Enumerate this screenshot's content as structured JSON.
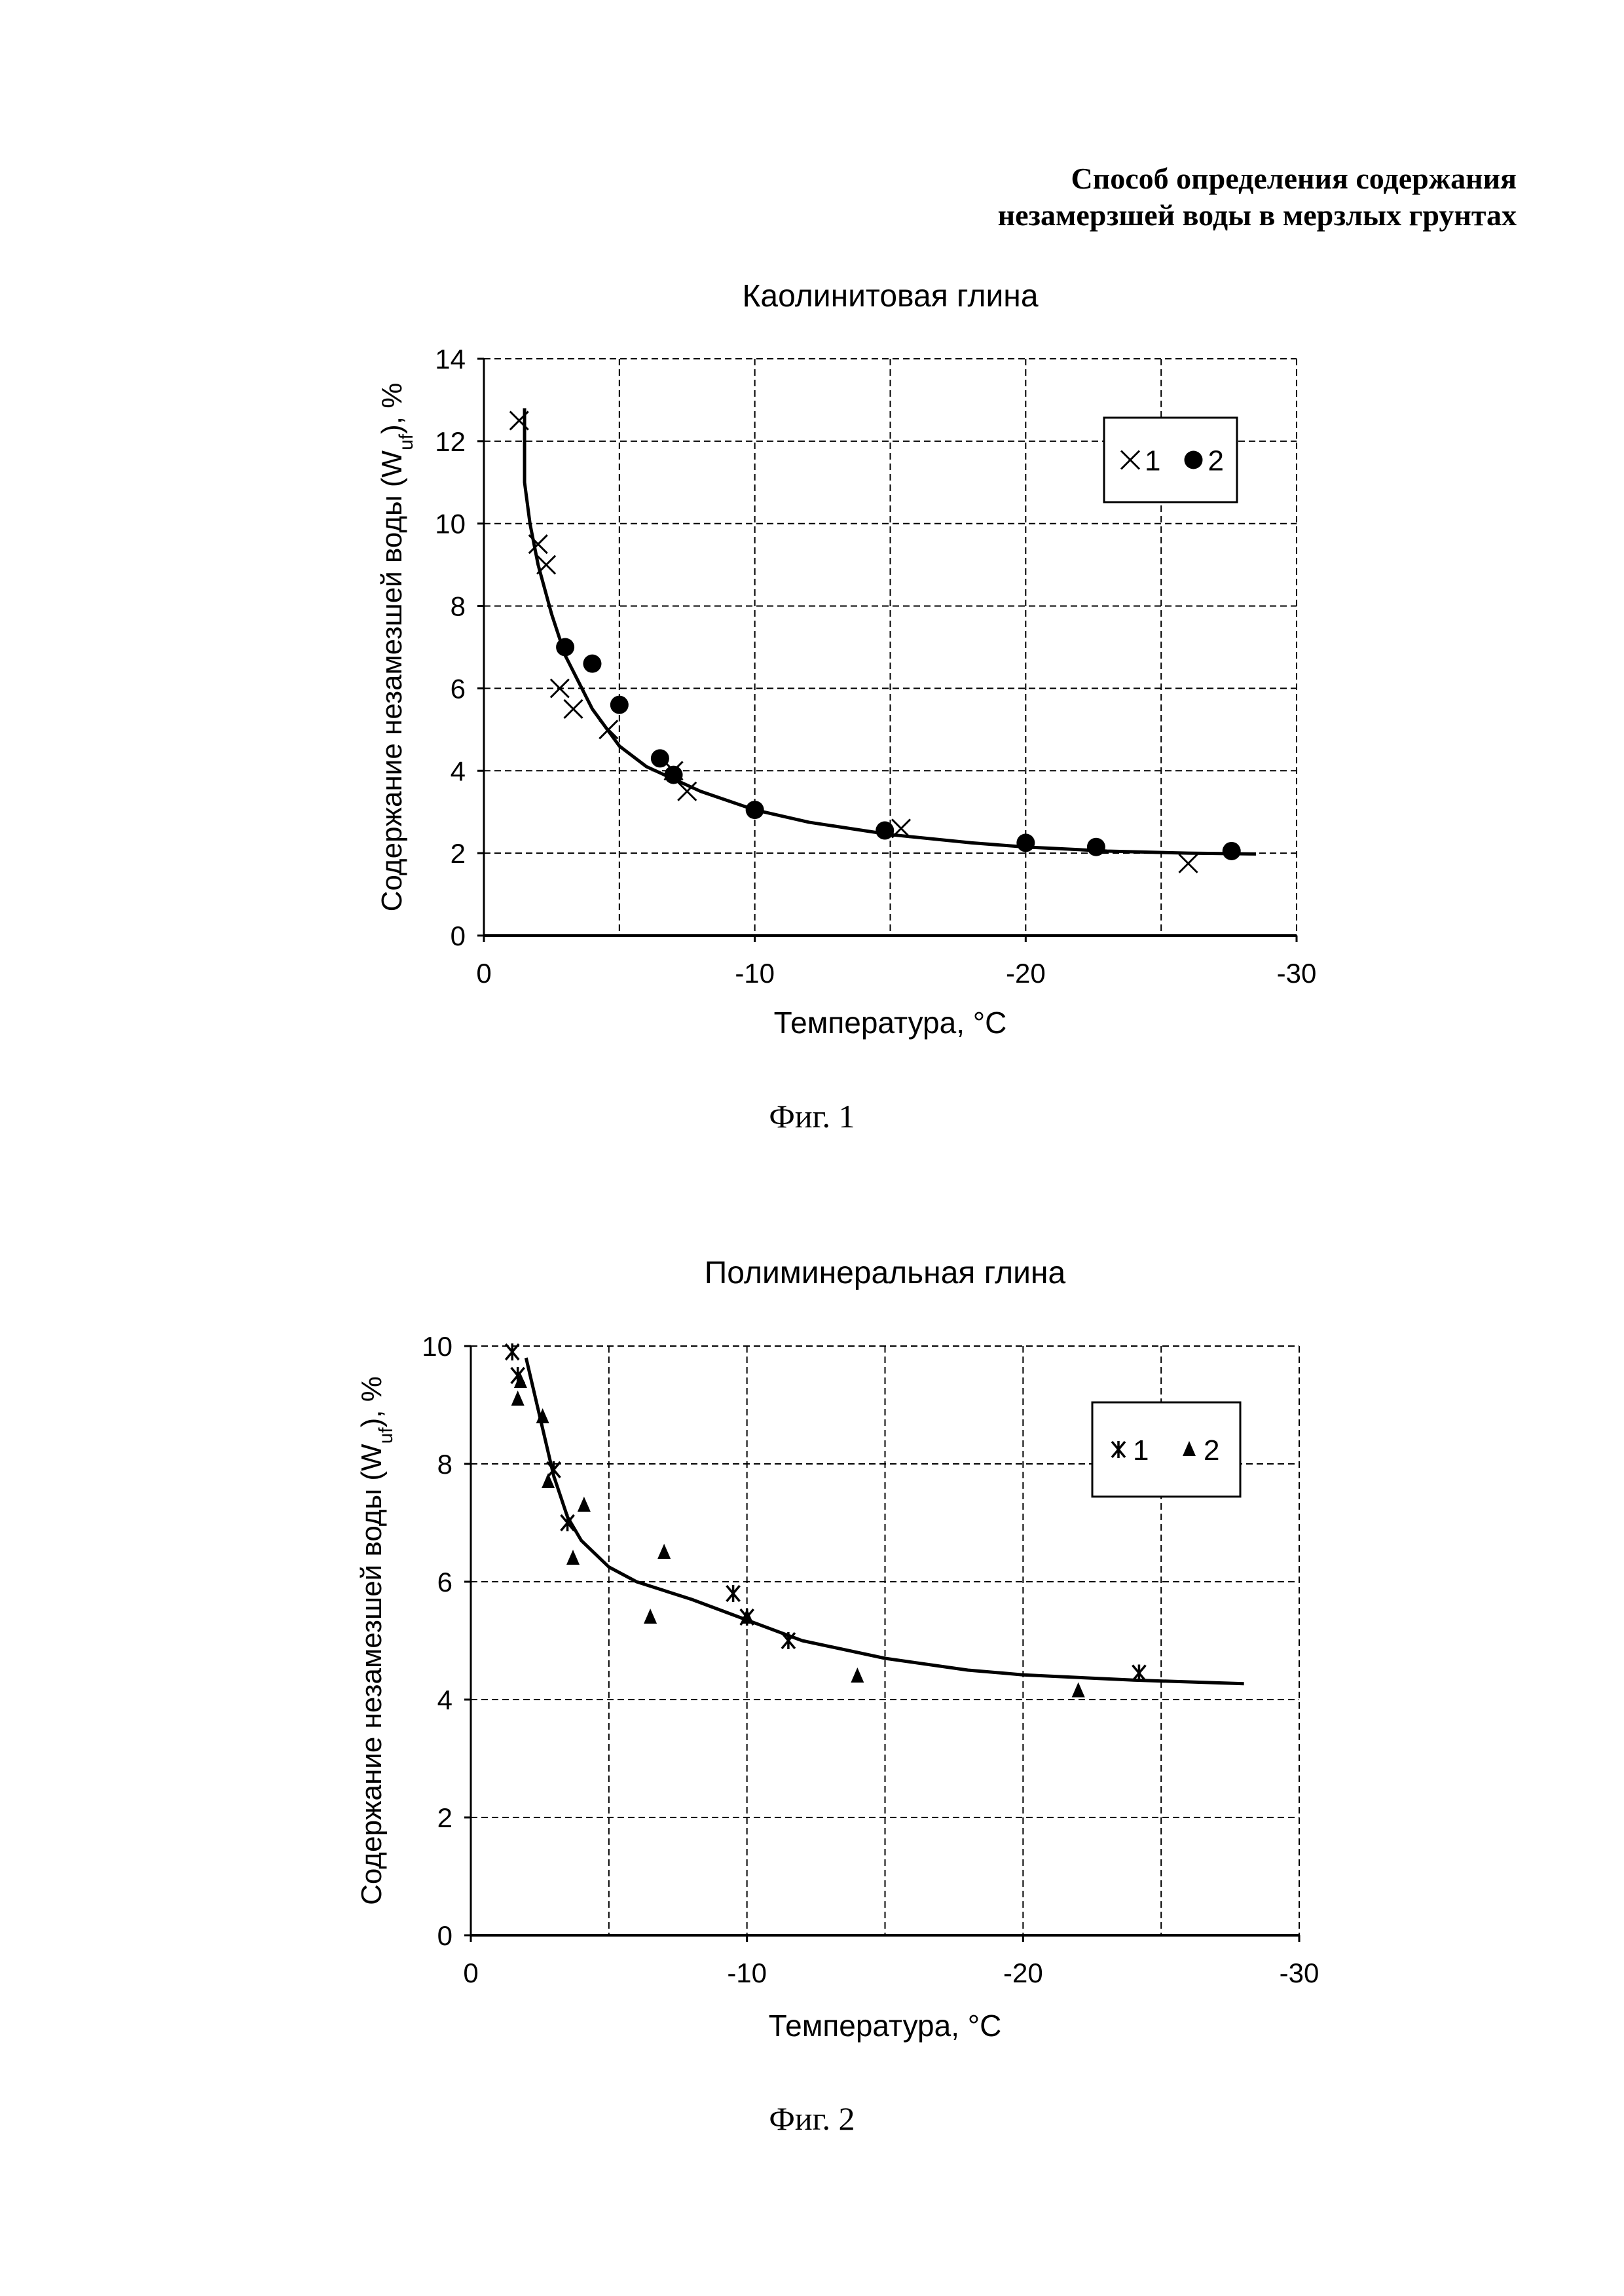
{
  "header": {
    "line1": "Способ определения содержания",
    "line2": "незамерзшей воды в мерзлых грунтах"
  },
  "figures": [
    {
      "caption": "Фиг. 1"
    },
    {
      "caption": "Фиг. 2"
    }
  ],
  "chart_data": [
    {
      "type": "scatter",
      "title": "Каолинитовая глина",
      "xlabel": "Температура, °C",
      "ylabel": "Содержание незамезшей воды (Wuf), %",
      "xlim": [
        0,
        -30
      ],
      "ylim": [
        0,
        14
      ],
      "xticks": [
        0,
        -10,
        -20,
        -30
      ],
      "yticks": [
        0,
        2,
        4,
        6,
        8,
        10,
        12,
        14
      ],
      "grid": true,
      "legend_position": "top-right",
      "series": [
        {
          "name": "1",
          "marker": "x",
          "points": [
            [
              -1.3,
              12.5
            ],
            [
              -2,
              9.5
            ],
            [
              -2.3,
              9
            ],
            [
              -2.8,
              6
            ],
            [
              -3.3,
              5.5
            ],
            [
              -4.6,
              5
            ],
            [
              -7,
              4
            ],
            [
              -7.5,
              3.5
            ],
            [
              -15.4,
              2.6
            ],
            [
              -26,
              1.75
            ]
          ]
        },
        {
          "name": "2",
          "marker": "circle",
          "points": [
            [
              -3,
              7
            ],
            [
              -4,
              6.6
            ],
            [
              -5,
              5.6
            ],
            [
              -6.5,
              4.3
            ],
            [
              -7,
              3.9
            ],
            [
              -10,
              3.05
            ],
            [
              -14.8,
              2.55
            ],
            [
              -20,
              2.25
            ],
            [
              -22.6,
              2.15
            ],
            [
              -27.6,
              2.05
            ]
          ]
        }
      ],
      "fit_curve": [
        [
          -1.5,
          12.8
        ],
        [
          -1.5,
          11
        ],
        [
          -1.7,
          10
        ],
        [
          -2,
          9
        ],
        [
          -2.5,
          7.8
        ],
        [
          -3,
          6.8
        ],
        [
          -4,
          5.5
        ],
        [
          -5,
          4.6
        ],
        [
          -6,
          4.1
        ],
        [
          -7,
          3.8
        ],
        [
          -8,
          3.5
        ],
        [
          -10,
          3.05
        ],
        [
          -12,
          2.75
        ],
        [
          -15,
          2.45
        ],
        [
          -18,
          2.25
        ],
        [
          -20,
          2.15
        ],
        [
          -23,
          2.05
        ],
        [
          -26,
          2.0
        ],
        [
          -28.5,
          1.98
        ]
      ]
    },
    {
      "type": "scatter",
      "title": "Полиминеральная глина",
      "xlabel": "Температура, °C",
      "ylabel": "Содержание незамезшей воды (Wuf), %",
      "xlim": [
        0,
        -30
      ],
      "ylim": [
        0,
        10
      ],
      "xticks": [
        0,
        -10,
        -20,
        -30
      ],
      "yticks": [
        0,
        2,
        4,
        6,
        8,
        10
      ],
      "grid": true,
      "legend_position": "top-right",
      "series": [
        {
          "name": "1",
          "marker": "asterisk",
          "points": [
            [
              -1.5,
              9.9
            ],
            [
              -1.7,
              9.5
            ],
            [
              -3,
              7.9
            ],
            [
              -3.5,
              7
            ],
            [
              -9.5,
              5.8
            ],
            [
              -10,
              5.4
            ],
            [
              -11.5,
              5
            ],
            [
              -24.2,
              4.45
            ]
          ]
        },
        {
          "name": "2",
          "marker": "triangle",
          "points": [
            [
              -1.7,
              9.1
            ],
            [
              -1.8,
              9.4
            ],
            [
              -2.6,
              8.8
            ],
            [
              -2.8,
              7.7
            ],
            [
              -3.7,
              6.4
            ],
            [
              -4.1,
              7.3
            ],
            [
              -6.5,
              5.4
            ],
            [
              -7,
              6.5
            ],
            [
              -10,
              5.4
            ],
            [
              -14,
              4.4
            ],
            [
              -22,
              4.15
            ]
          ]
        }
      ],
      "fit_curve": [
        [
          -2,
          9.8
        ],
        [
          -2.5,
          8.8
        ],
        [
          -3,
          7.8
        ],
        [
          -3.5,
          7.1
        ],
        [
          -4,
          6.7
        ],
        [
          -5,
          6.25
        ],
        [
          -6,
          6.0
        ],
        [
          -8,
          5.7
        ],
        [
          -10,
          5.35
        ],
        [
          -12,
          5.0
        ],
        [
          -15,
          4.7
        ],
        [
          -18,
          4.5
        ],
        [
          -20,
          4.42
        ],
        [
          -24,
          4.33
        ],
        [
          -28,
          4.27
        ]
      ]
    }
  ]
}
